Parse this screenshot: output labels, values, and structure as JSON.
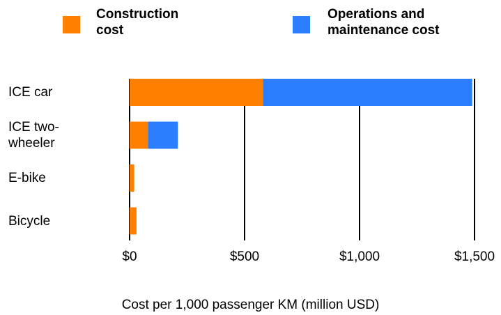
{
  "chart_data": {
    "type": "stacked-bar-horizontal",
    "categories": [
      "ICE car",
      "ICE two-wheeler",
      "E-bike",
      "Bicycle"
    ],
    "series": [
      {
        "name": "Construction cost",
        "color": "#ff8000",
        "values": [
          580,
          80,
          20,
          30
        ]
      },
      {
        "name": "Operations and maintenance cost",
        "color": "#2b7fff",
        "values": [
          910,
          130,
          0,
          0
        ]
      }
    ],
    "xlim": [
      0,
      1500
    ],
    "xticks": [
      {
        "value": 0,
        "label": "$0"
      },
      {
        "value": 500,
        "label": "$500"
      },
      {
        "value": 1000,
        "label": "$1,000"
      },
      {
        "value": 1500,
        "label": "$1,500"
      }
    ],
    "xlabel": "Cost per 1,000 passenger KM (million USD)",
    "grid": true
  }
}
